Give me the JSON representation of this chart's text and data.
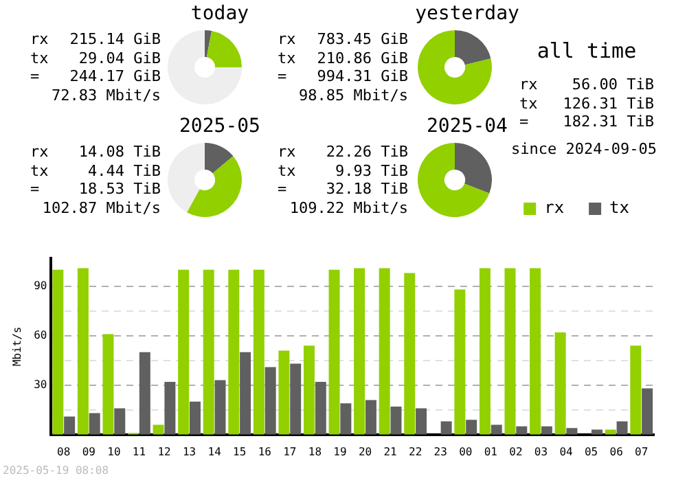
{
  "chart_data": [
    {
      "type": "donut",
      "title": "today",
      "categories": [
        null,
        null,
        null
      ],
      "values": [
        3.0,
        22.0,
        75.0
      ],
      "colors": [
        "#606060",
        "#92d000",
        "#eeeeee"
      ],
      "annotations": [
        "rx",
        "215.14 GiB",
        "tx",
        "29.04 GiB",
        "=",
        "244.17 GiB",
        "72.83 Mbit/s"
      ]
    },
    {
      "type": "donut",
      "title": "yesterday",
      "categories": [
        null,
        null
      ],
      "values": [
        21.2,
        78.8
      ],
      "colors": [
        "#606060",
        "#92d000"
      ],
      "annotations": [
        "rx",
        "783.45 GiB",
        "tx",
        "210.86 GiB",
        "=",
        "994.31 GiB",
        "98.85 Mbit/s"
      ]
    },
    {
      "type": "donut",
      "title": "2025-05",
      "categories": [
        null,
        null,
        null
      ],
      "values": [
        13.9,
        44.1,
        42.0
      ],
      "colors": [
        "#606060",
        "#92d000",
        "#eeeeee"
      ],
      "annotations": [
        "rx",
        "14.08 TiB",
        "tx",
        "4.44 TiB",
        "=",
        "18.53 TiB",
        "102.87 Mbit/s"
      ]
    },
    {
      "type": "donut",
      "title": "2025-04",
      "categories": [
        null,
        null
      ],
      "values": [
        30.9,
        69.1
      ],
      "colors": [
        "#606060",
        "#92d000"
      ],
      "annotations": [
        "rx",
        "22.26 TiB",
        "tx",
        "9.93 TiB",
        "=",
        "32.18 TiB",
        "109.22 Mbit/s"
      ]
    },
    {
      "type": "other",
      "title": "all time",
      "annotations": [
        "rx",
        "56.00 TiB",
        "tx",
        "126.31 TiB",
        "=",
        "182.31 TiB",
        "since 2024-09-05"
      ]
    },
    {
      "type": "bar",
      "ylabel": "Mbit/s",
      "categories": [
        "08",
        "09",
        "10",
        "11",
        "12",
        "13",
        "14",
        "15",
        "16",
        "17",
        "18",
        "19",
        "20",
        "21",
        "22",
        "23",
        "00",
        "01",
        "02",
        "03",
        "04",
        "05",
        "06",
        "07"
      ],
      "series": [
        {
          "name": "rx",
          "color": "#92d000",
          "values": [
            100,
            101,
            61,
            1,
            6,
            100,
            100,
            100,
            100,
            51,
            54,
            100,
            101,
            101,
            98,
            0,
            88,
            101,
            101,
            101,
            62,
            0,
            3,
            54
          ]
        },
        {
          "name": "tx",
          "color": "#606060",
          "values": [
            11,
            13,
            16,
            50,
            32,
            20,
            33,
            50,
            41,
            43,
            32,
            19,
            21,
            17,
            16,
            8,
            9,
            6,
            5,
            5,
            4,
            3,
            8,
            28
          ]
        }
      ],
      "ylim": [
        0,
        107
      ],
      "yticks": [
        {
          "value": 15,
          "label": null
        },
        30,
        {
          "value": 45,
          "label": null
        },
        60,
        {
          "value": 75,
          "label": null
        },
        90
      ],
      "grid": "y",
      "legend": "top right",
      "annotations": [
        "2025-05-19 08:08"
      ]
    }
  ]
}
